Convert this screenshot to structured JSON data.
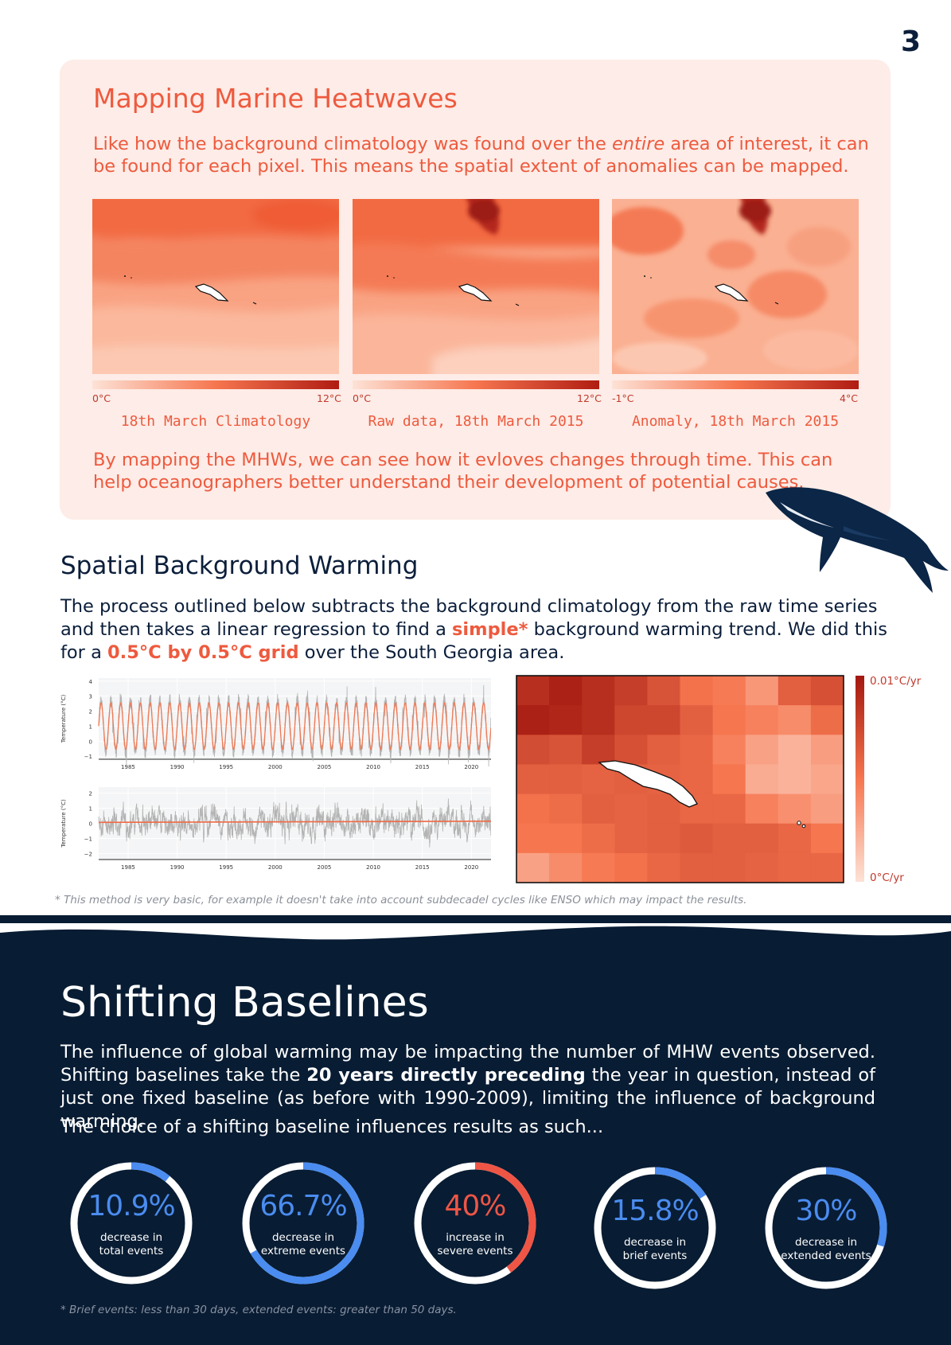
{
  "page_number": "3",
  "mapping": {
    "title": "Mapping Marine Heatwaves",
    "intro_before_em": "Like how the background climatology was found over the ",
    "intro_em": "entire",
    "intro_after_em": " area of interest, it can be found for each pixel. This means the spatial extent of anomalies can be mapped.",
    "maps": [
      {
        "caption": "18th March Climatology",
        "scale_min": "0°C",
        "scale_max": "12°C"
      },
      {
        "caption": "Raw data, 18th March 2015",
        "scale_min": "0°C",
        "scale_max": "12°C"
      },
      {
        "caption": "Anomaly, 18th March 2015",
        "scale_min": "-1°C",
        "scale_max": "4°C"
      }
    ],
    "outro": "By mapping the MHWs, we can see how it evloves changes through time. This can help oceanographers better understand their development of potential causes."
  },
  "spatial": {
    "title": "Spatial Background Warming",
    "body_part1": "The process outlined below subtracts the background climatology from the raw time series and then takes a linear regression to find a ",
    "body_hl1": "simple*",
    "body_part2": " background warming trend. We did this for a ",
    "body_hl2": "0.5°C by 0.5°C grid",
    "body_part3": " over the South Georgia area.",
    "grid_scale_max": "0.01°C/yr",
    "grid_scale_min": "0°C/yr",
    "footnote": "* This method is very basic, for example it doesn't take into account subdecadel cycles like ENSO which may impact the results."
  },
  "chart_data": [
    {
      "type": "line",
      "ylabel": "Temperature (°C)",
      "xlim": [
        1982,
        2022
      ],
      "ylim": [
        -1.2,
        4.2
      ],
      "x_ticks": [
        "1985",
        "1990",
        "1995",
        "2000",
        "2005",
        "2010",
        "2015",
        "2020"
      ],
      "y_ticks": [
        "4",
        "3",
        "2",
        "1",
        "0",
        "−1"
      ],
      "series": [
        {
          "type": "seasonal",
          "mean": 1.0,
          "amplitude": 1.55,
          "start": 1982,
          "end": 2022
        },
        {
          "type": "raw",
          "mean": 1.0,
          "amplitude": 1.7,
          "start": 1982,
          "end": 2022
        }
      ]
    },
    {
      "type": "line",
      "ylabel": "Temperature (°C)",
      "xlim": [
        1982,
        2022
      ],
      "ylim": [
        -2.4,
        2.4
      ],
      "x_ticks": [
        "1985",
        "1990",
        "1995",
        "2000",
        "2005",
        "2010",
        "2015",
        "2020"
      ],
      "y_ticks": [
        "2",
        "1",
        "0",
        "−1",
        "−2"
      ],
      "series": [
        {
          "type": "anomaly",
          "start": 1982,
          "end": 2022
        },
        {
          "type": "trend",
          "points": [
            [
              1982,
              0.06
            ],
            [
              2022,
              0.14
            ]
          ]
        }
      ]
    },
    {
      "type": "heatmap",
      "unit": "°C/yr",
      "range": [
        0,
        0.01
      ],
      "values": [
        [
          0.0088,
          0.0095,
          0.0088,
          0.008,
          0.0068,
          0.0052,
          0.0048,
          0.0035,
          0.0062,
          0.007
        ],
        [
          0.0095,
          0.0092,
          0.0088,
          0.0075,
          0.0075,
          0.0062,
          0.005,
          0.0045,
          0.004,
          0.0055
        ],
        [
          0.0072,
          0.0068,
          0.008,
          0.007,
          0.0062,
          0.0058,
          0.0045,
          0.003,
          0.0022,
          0.0032
        ],
        [
          0.0062,
          0.0062,
          0.006,
          0.0062,
          0.006,
          0.0058,
          0.005,
          0.0025,
          0.0022,
          0.0028
        ],
        [
          0.0052,
          0.0055,
          0.0062,
          0.006,
          0.0062,
          0.0058,
          0.0058,
          0.0045,
          0.0038,
          0.0032
        ],
        [
          0.005,
          0.005,
          0.0055,
          0.006,
          0.0062,
          0.0065,
          0.0062,
          0.0062,
          0.0058,
          0.005
        ],
        [
          0.003,
          0.004,
          0.0048,
          0.0052,
          0.0058,
          0.0062,
          0.0062,
          0.006,
          0.0058,
          0.0058
        ]
      ]
    }
  ],
  "shifting": {
    "title": "Shifting Baselines",
    "body_part1": "The influence of global warming may be impacting the number of MHW events observed. Shifting baselines take the ",
    "body_bold": "20 years directly preceding",
    "body_part2": " the year in question, instead of just one fixed baseline (as before with 1990-2009), limiting the influence of background warming.",
    "choice": "The choice of a shifting baseline influences results as such...",
    "stats": [
      {
        "value": "10.9%",
        "label_line1": "decrease in",
        "label_line2": "total events",
        "fraction": 0.109,
        "color": "#4a8cf0"
      },
      {
        "value": "66.7%",
        "label_line1": "decrease in",
        "label_line2": "extreme events",
        "fraction": 0.667,
        "color": "#4a8cf0"
      },
      {
        "value": "40%",
        "label_line1": "increase in",
        "label_line2": "severe events",
        "fraction": 0.4,
        "color": "#ef5545"
      },
      {
        "value": "15.8%",
        "label_line1": "decrease in",
        "label_line2": "brief events",
        "fraction": 0.158,
        "color": "#4a8cf0"
      },
      {
        "value": "30%",
        "label_line1": "decrease in",
        "label_line2": "extended events",
        "fraction": 0.3,
        "color": "#4a8cf0"
      }
    ],
    "footnote": "* Brief events: less than 30 days, extended events: greater than 50 days."
  }
}
